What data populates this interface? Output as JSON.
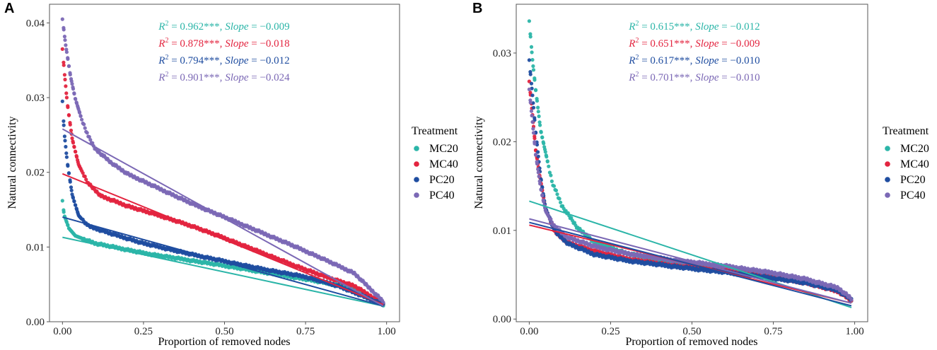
{
  "figure": {
    "legend_title": "Treatment",
    "series_names": [
      "MC20",
      "MC40",
      "PC20",
      "PC40"
    ],
    "colors": {
      "MC20": "#2bb5a8",
      "MC40": "#e3243f",
      "PC20": "#1f4da0",
      "PC40": "#7b68b5"
    }
  },
  "chart_data": [
    {
      "panel": "A",
      "type": "scatter",
      "title": "",
      "xlabel": "Proportion of removed nodes",
      "ylabel": "Natural connectivity",
      "xlim": [
        -0.04,
        1.04
      ],
      "ylim": [
        0.0,
        0.0425
      ],
      "xticks": [
        0.0,
        0.25,
        0.5,
        0.75,
        1.0
      ],
      "xtick_labels": [
        "0.00",
        "0.25",
        "0.50",
        "0.75",
        "1.00"
      ],
      "yticks": [
        0.0,
        0.01,
        0.02,
        0.03,
        0.04
      ],
      "ytick_labels": [
        "0.00",
        "0.01",
        "0.02",
        "0.03",
        "0.04"
      ],
      "legend": "right",
      "series": [
        {
          "name": "MC20",
          "start": 0.0162,
          "curve": [
            [
              0.0,
              0.0162
            ],
            [
              0.005,
              0.0143
            ],
            [
              0.02,
              0.0125
            ],
            [
              0.04,
              0.0115
            ],
            [
              0.1,
              0.0105
            ],
            [
              0.25,
              0.0092
            ],
            [
              0.5,
              0.0075
            ],
            [
              0.75,
              0.0057
            ],
            [
              0.9,
              0.0045
            ],
            [
              0.99,
              0.0023
            ]
          ],
          "fit_line": [
            [
              0.0,
              0.0113
            ],
            [
              0.99,
              0.0021
            ]
          ]
        },
        {
          "name": "MC40",
          "start": 0.0365,
          "curve": [
            [
              0.0,
              0.0365
            ],
            [
              0.005,
              0.0338
            ],
            [
              0.015,
              0.0292
            ],
            [
              0.03,
              0.0245
            ],
            [
              0.05,
              0.021
            ],
            [
              0.08,
              0.0185
            ],
            [
              0.12,
              0.0168
            ],
            [
              0.2,
              0.0155
            ],
            [
              0.3,
              0.0142
            ],
            [
              0.4,
              0.0128
            ],
            [
              0.5,
              0.0112
            ],
            [
              0.6,
              0.0095
            ],
            [
              0.7,
              0.0078
            ],
            [
              0.8,
              0.0062
            ],
            [
              0.9,
              0.0048
            ],
            [
              0.99,
              0.0024
            ]
          ],
          "fit_line": [
            [
              0.0,
              0.0198
            ],
            [
              0.99,
              0.0023
            ]
          ]
        },
        {
          "name": "PC20",
          "start": 0.0295,
          "curve": [
            [
              0.0,
              0.0295
            ],
            [
              0.005,
              0.0255
            ],
            [
              0.015,
              0.0213
            ],
            [
              0.03,
              0.017
            ],
            [
              0.05,
              0.0142
            ],
            [
              0.08,
              0.0128
            ],
            [
              0.15,
              0.0118
            ],
            [
              0.25,
              0.0105
            ],
            [
              0.4,
              0.009
            ],
            [
              0.5,
              0.0081
            ],
            [
              0.6,
              0.0072
            ],
            [
              0.75,
              0.006
            ],
            [
              0.85,
              0.0048
            ],
            [
              0.99,
              0.0023
            ]
          ],
          "fit_line": [
            [
              0.0,
              0.014
            ],
            [
              0.99,
              0.0021
            ]
          ]
        },
        {
          "name": "PC40",
          "start": 0.0405,
          "curve": [
            [
              0.0,
              0.0405
            ],
            [
              0.01,
              0.037
            ],
            [
              0.025,
              0.0328
            ],
            [
              0.04,
              0.0298
            ],
            [
              0.06,
              0.027
            ],
            [
              0.08,
              0.0248
            ],
            [
              0.1,
              0.0232
            ],
            [
              0.15,
              0.0213
            ],
            [
              0.2,
              0.0198
            ],
            [
              0.3,
              0.0178
            ],
            [
              0.4,
              0.0158
            ],
            [
              0.5,
              0.014
            ],
            [
              0.6,
              0.0122
            ],
            [
              0.7,
              0.0104
            ],
            [
              0.8,
              0.0085
            ],
            [
              0.9,
              0.0065
            ],
            [
              0.99,
              0.0027
            ]
          ],
          "fit_line": [
            [
              0.0,
              0.0258
            ],
            [
              0.99,
              0.0021
            ]
          ]
        }
      ],
      "annotations": [
        {
          "series": "MC20",
          "r2": "0.962***",
          "slope": "−0.009"
        },
        {
          "series": "MC40",
          "r2": "0.878***",
          "slope": "−0.018"
        },
        {
          "series": "PC20",
          "r2": "0.794***",
          "slope": "−0.012"
        },
        {
          "series": "PC40",
          "r2": "0.901***",
          "slope": "−0.024"
        }
      ]
    },
    {
      "panel": "B",
      "type": "scatter",
      "title": "",
      "xlabel": "Proportion of removed nodes",
      "ylabel": "Natural connectivity",
      "xlim": [
        -0.04,
        1.04
      ],
      "ylim": [
        -0.0003,
        0.0355
      ],
      "xticks": [
        0.0,
        0.25,
        0.5,
        0.75,
        1.0
      ],
      "xtick_labels": [
        "0.00",
        "0.25",
        "0.50",
        "0.75",
        "1.00"
      ],
      "yticks": [
        0.0,
        0.01,
        0.02,
        0.03
      ],
      "ytick_labels": [
        "0.00",
        "0.01",
        "0.02",
        "0.03"
      ],
      "legend": "right",
      "series": [
        {
          "name": "MC20",
          "start": 0.0336,
          "curve": [
            [
              0.0,
              0.0336
            ],
            [
              0.01,
              0.0292
            ],
            [
              0.02,
              0.0258
            ],
            [
              0.035,
              0.0213
            ],
            [
              0.05,
              0.0188
            ],
            [
              0.07,
              0.0155
            ],
            [
              0.1,
              0.0128
            ],
            [
              0.15,
              0.0102
            ],
            [
              0.2,
              0.0087
            ],
            [
              0.3,
              0.0074
            ],
            [
              0.45,
              0.0063
            ],
            [
              0.6,
              0.0057
            ],
            [
              0.75,
              0.005
            ],
            [
              0.85,
              0.0043
            ],
            [
              0.95,
              0.0032
            ],
            [
              0.99,
              0.0022
            ]
          ],
          "fit_line": [
            [
              0.0,
              0.0133
            ],
            [
              0.99,
              0.0013
            ]
          ]
        },
        {
          "name": "MC40",
          "start": 0.0268,
          "curve": [
            [
              0.0,
              0.0268
            ],
            [
              0.01,
              0.023
            ],
            [
              0.02,
              0.019
            ],
            [
              0.035,
              0.0155
            ],
            [
              0.05,
              0.0125
            ],
            [
              0.08,
              0.0098
            ],
            [
              0.12,
              0.0086
            ],
            [
              0.2,
              0.0077
            ],
            [
              0.3,
              0.0068
            ],
            [
              0.45,
              0.006
            ],
            [
              0.6,
              0.0055
            ],
            [
              0.75,
              0.0047
            ],
            [
              0.85,
              0.0041
            ],
            [
              0.95,
              0.0031
            ],
            [
              0.99,
              0.0021
            ]
          ],
          "fit_line": [
            [
              0.0,
              0.0106
            ],
            [
              0.99,
              0.0018
            ]
          ]
        },
        {
          "name": "PC20",
          "start": 0.0292,
          "curve": [
            [
              0.0,
              0.0292
            ],
            [
              0.01,
              0.0252
            ],
            [
              0.02,
              0.021
            ],
            [
              0.035,
              0.016
            ],
            [
              0.05,
              0.0125
            ],
            [
              0.08,
              0.0098
            ],
            [
              0.12,
              0.0085
            ],
            [
              0.2,
              0.0073
            ],
            [
              0.3,
              0.0066
            ],
            [
              0.45,
              0.0059
            ],
            [
              0.6,
              0.0053
            ],
            [
              0.75,
              0.0046
            ],
            [
              0.85,
              0.0041
            ],
            [
              0.95,
              0.0032
            ],
            [
              0.99,
              0.0022
            ]
          ],
          "fit_line": [
            [
              0.0,
              0.0109
            ],
            [
              0.99,
              0.0015
            ]
          ]
        },
        {
          "name": "PC40",
          "start": 0.0259,
          "curve": [
            [
              0.0,
              0.0259
            ],
            [
              0.01,
              0.0222
            ],
            [
              0.02,
              0.0185
            ],
            [
              0.035,
              0.0148
            ],
            [
              0.05,
              0.0122
            ],
            [
              0.08,
              0.0103
            ],
            [
              0.12,
              0.0092
            ],
            [
              0.2,
              0.0082
            ],
            [
              0.3,
              0.0074
            ],
            [
              0.45,
              0.0066
            ],
            [
              0.6,
              0.006
            ],
            [
              0.75,
              0.0052
            ],
            [
              0.85,
              0.0045
            ],
            [
              0.95,
              0.0035
            ],
            [
              0.99,
              0.0023
            ]
          ],
          "fit_line": [
            [
              0.0,
              0.0113
            ],
            [
              0.99,
              0.0018
            ]
          ]
        }
      ],
      "annotations": [
        {
          "series": "MC20",
          "r2": "0.615***",
          "slope": "−0.012"
        },
        {
          "series": "MC40",
          "r2": "0.651***",
          "slope": "−0.009"
        },
        {
          "series": "PC20",
          "r2": "0.617***",
          "slope": "−0.010"
        },
        {
          "series": "PC40",
          "r2": "0.701***",
          "slope": "−0.010"
        }
      ]
    }
  ]
}
